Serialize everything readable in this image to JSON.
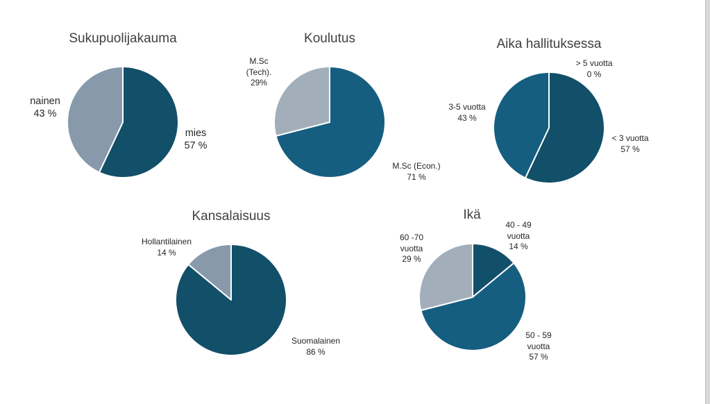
{
  "colors": {
    "dark_teal": "#124f69",
    "teal": "#155e80",
    "slate": "#8799ab",
    "light_slate": "#a2aeb9"
  },
  "chart_data": [
    {
      "type": "pie",
      "title": "Sukupuolijakauma",
      "slices": [
        {
          "label": "mies",
          "value": 57,
          "value_label": "57 %",
          "color": "#124f69"
        },
        {
          "label": "nainen",
          "value": 43,
          "value_label": "43 %",
          "color": "#8799ab"
        }
      ]
    },
    {
      "type": "pie",
      "title": "Koulutus",
      "slices": [
        {
          "label": "M.Sc (Econ.)",
          "value": 71,
          "value_label": "71 %",
          "color": "#155e80"
        },
        {
          "label": "M.Sc (Tech).",
          "value": 29,
          "value_label": "29%",
          "color": "#a2aeb9"
        }
      ]
    },
    {
      "type": "pie",
      "title": "Aika hallituksessa",
      "slices": [
        {
          "label": "< 3 vuotta",
          "value": 57,
          "value_label": "57 %",
          "color": "#124f69"
        },
        {
          "label": "3-5 vuotta",
          "value": 43,
          "value_label": "43 %",
          "color": "#155e80"
        },
        {
          "label": "> 5 vuotta",
          "value": 0,
          "value_label": "0 %",
          "color": "#a2aeb9"
        }
      ]
    },
    {
      "type": "pie",
      "title": "Kansalaisuus",
      "slices": [
        {
          "label": "Suomalainen",
          "value": 86,
          "value_label": "86 %",
          "color": "#124f69"
        },
        {
          "label": "Hollantilainen",
          "value": 14,
          "value_label": "14 %",
          "color": "#8799ab"
        }
      ]
    },
    {
      "type": "pie",
      "title": "Ikä",
      "slices": [
        {
          "label": "40 - 49 vuotta",
          "value": 14,
          "value_label": "14 %",
          "color": "#124f69"
        },
        {
          "label": "50 - 59 vuotta",
          "value": 57,
          "value_label": "57 %",
          "color": "#155e80"
        },
        {
          "label": "60 -70 vuotta",
          "value": 29,
          "value_label": "29 %",
          "color": "#a2aeb9"
        }
      ]
    }
  ]
}
